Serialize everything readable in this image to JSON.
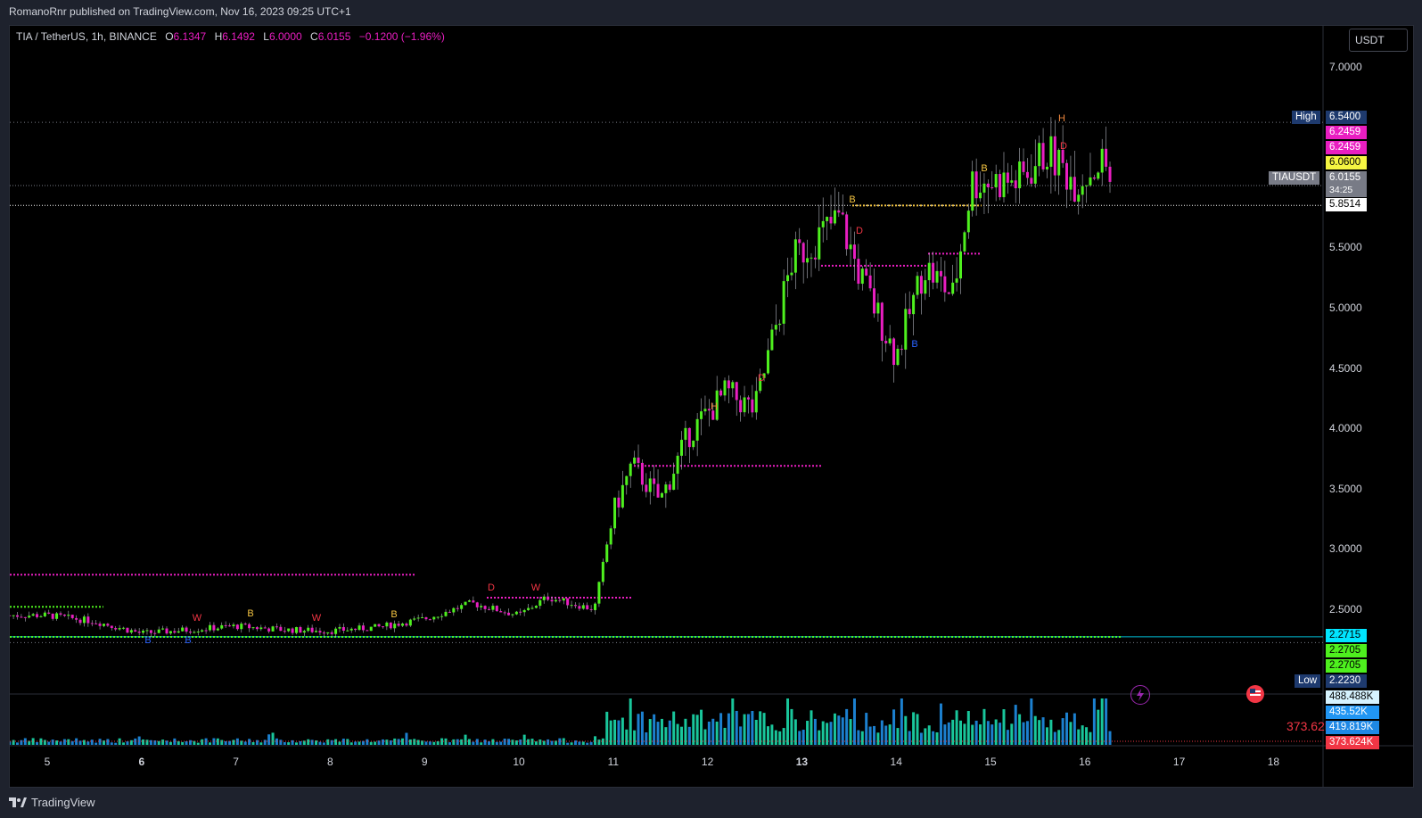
{
  "header": {
    "published_by": "RomanoRnr published on TradingView.com, Nov 16, 2023 09:25 UTC+1"
  },
  "legend": {
    "symbol": "TIA / TetherUS, 1h, BINANCE",
    "o_label": "O",
    "o_value": "6.1347",
    "h_label": "H",
    "h_value": "6.1492",
    "l_label": "L",
    "l_value": "6.0000",
    "c_label": "C",
    "c_value": "6.0155",
    "change": "−0.1200 (−1.96%)"
  },
  "currency": "USDT",
  "price_axis": {
    "ticks": [
      "7.0000",
      "5.5000",
      "5.0000",
      "4.5000",
      "4.0000",
      "3.5000",
      "3.0000",
      "2.5000"
    ]
  },
  "time_axis": {
    "ticks": [
      "5",
      "6",
      "7",
      "8",
      "9",
      "10",
      "11",
      "12",
      "13",
      "14",
      "15",
      "16",
      "17",
      "18"
    ],
    "bold": [
      "6",
      "13"
    ]
  },
  "price_tags": {
    "high_label": "High",
    "high": "6.5400",
    "p1": "6.2459",
    "p2": "6.2459",
    "p3": "6.0600",
    "symbol_label": "TIAUSDT",
    "last": "6.0155",
    "countdown": "34:25",
    "p4": "5.8514",
    "s1": "2.2715",
    "s2": "2.2705",
    "s3": "2.2705",
    "low_label": "Low",
    "low": "2.2230"
  },
  "volume": {
    "label": "373.62k",
    "tags": [
      "488.488K",
      "435.52K",
      "419.819K",
      "373.624K"
    ]
  },
  "markers": [
    {
      "t": "B",
      "c": "#f5c542"
    },
    {
      "t": "B",
      "c": "#f5c542"
    },
    {
      "t": "B",
      "c": "#f5c542"
    },
    {
      "t": "B",
      "c": "#f5c542"
    },
    {
      "t": "H",
      "c": "#f0883e"
    },
    {
      "t": "H",
      "c": "#f0883e"
    },
    {
      "t": "D",
      "c": "#f23645"
    },
    {
      "t": "D",
      "c": "#f23645"
    },
    {
      "t": "D",
      "c": "#f23645"
    },
    {
      "t": "D",
      "c": "#f23645"
    },
    {
      "t": "W",
      "c": "#f23645"
    },
    {
      "t": "W",
      "c": "#f23645"
    },
    {
      "t": "W",
      "c": "#f23645"
    },
    {
      "t": "B",
      "c": "#2962ff"
    },
    {
      "t": "B",
      "c": "#2962ff"
    },
    {
      "t": "B",
      "c": "#2962ff"
    }
  ],
  "colors": {
    "up": "#4ef01e",
    "down": "#e91ec1",
    "accent": "#e91ec1",
    "bg": "#000000"
  },
  "chart_data": {
    "type": "candlestick",
    "symbol": "TIAUSDT",
    "interval": "1h",
    "ylim": [
      2.0,
      7.2
    ],
    "x_ticks": [
      "5",
      "6",
      "7",
      "8",
      "9",
      "10",
      "11",
      "12",
      "13",
      "14",
      "15",
      "16",
      "17",
      "18"
    ],
    "close_path": [
      [
        "5",
        2.45
      ],
      [
        "5.5",
        2.4
      ],
      [
        "6",
        2.3
      ],
      [
        "6.5",
        2.33
      ],
      [
        "7",
        2.36
      ],
      [
        "7.5",
        2.33
      ],
      [
        "8",
        2.32
      ],
      [
        "8.5",
        2.35
      ],
      [
        "9",
        2.42
      ],
      [
        "9.5",
        2.55
      ],
      [
        "10",
        2.45
      ],
      [
        "10.3",
        2.6
      ],
      [
        "10.8",
        2.5
      ],
      [
        "11",
        3.3
      ],
      [
        "11.2",
        3.7
      ],
      [
        "11.5",
        3.4
      ],
      [
        "11.8",
        3.95
      ],
      [
        "12.2",
        4.3
      ],
      [
        "12.5",
        4.15
      ],
      [
        "12.9",
        5.4
      ],
      [
        "13.4",
        5.75
      ],
      [
        "13.6",
        5.3
      ],
      [
        "14",
        4.6
      ],
      [
        "14.3",
        5.35
      ],
      [
        "14.6",
        5.1
      ],
      [
        "14.8",
        6.05
      ],
      [
        "15.3",
        6.05
      ],
      [
        "15.6",
        6.3
      ],
      [
        "15.9",
        6.05
      ],
      [
        "16.2",
        6.22
      ],
      [
        "16.3",
        6.0155
      ]
    ],
    "levels": [
      {
        "price": 2.787,
        "style": "dotted",
        "color": "#e91ec1"
      },
      {
        "price": 2.52,
        "style": "dotted",
        "color": "#4ef01e"
      },
      {
        "price": 2.2705,
        "style": "dotted",
        "color": "#4ef01e"
      },
      {
        "price": 3.69,
        "style": "dotted",
        "color": "#e91ec1"
      },
      {
        "price": 5.35,
        "style": "dotted",
        "color": "#e91ec1"
      },
      {
        "price": 5.45,
        "style": "dotted",
        "color": "#e91ec1"
      },
      {
        "price": 5.8514,
        "style": "solid",
        "color": "#f5c542"
      }
    ]
  }
}
